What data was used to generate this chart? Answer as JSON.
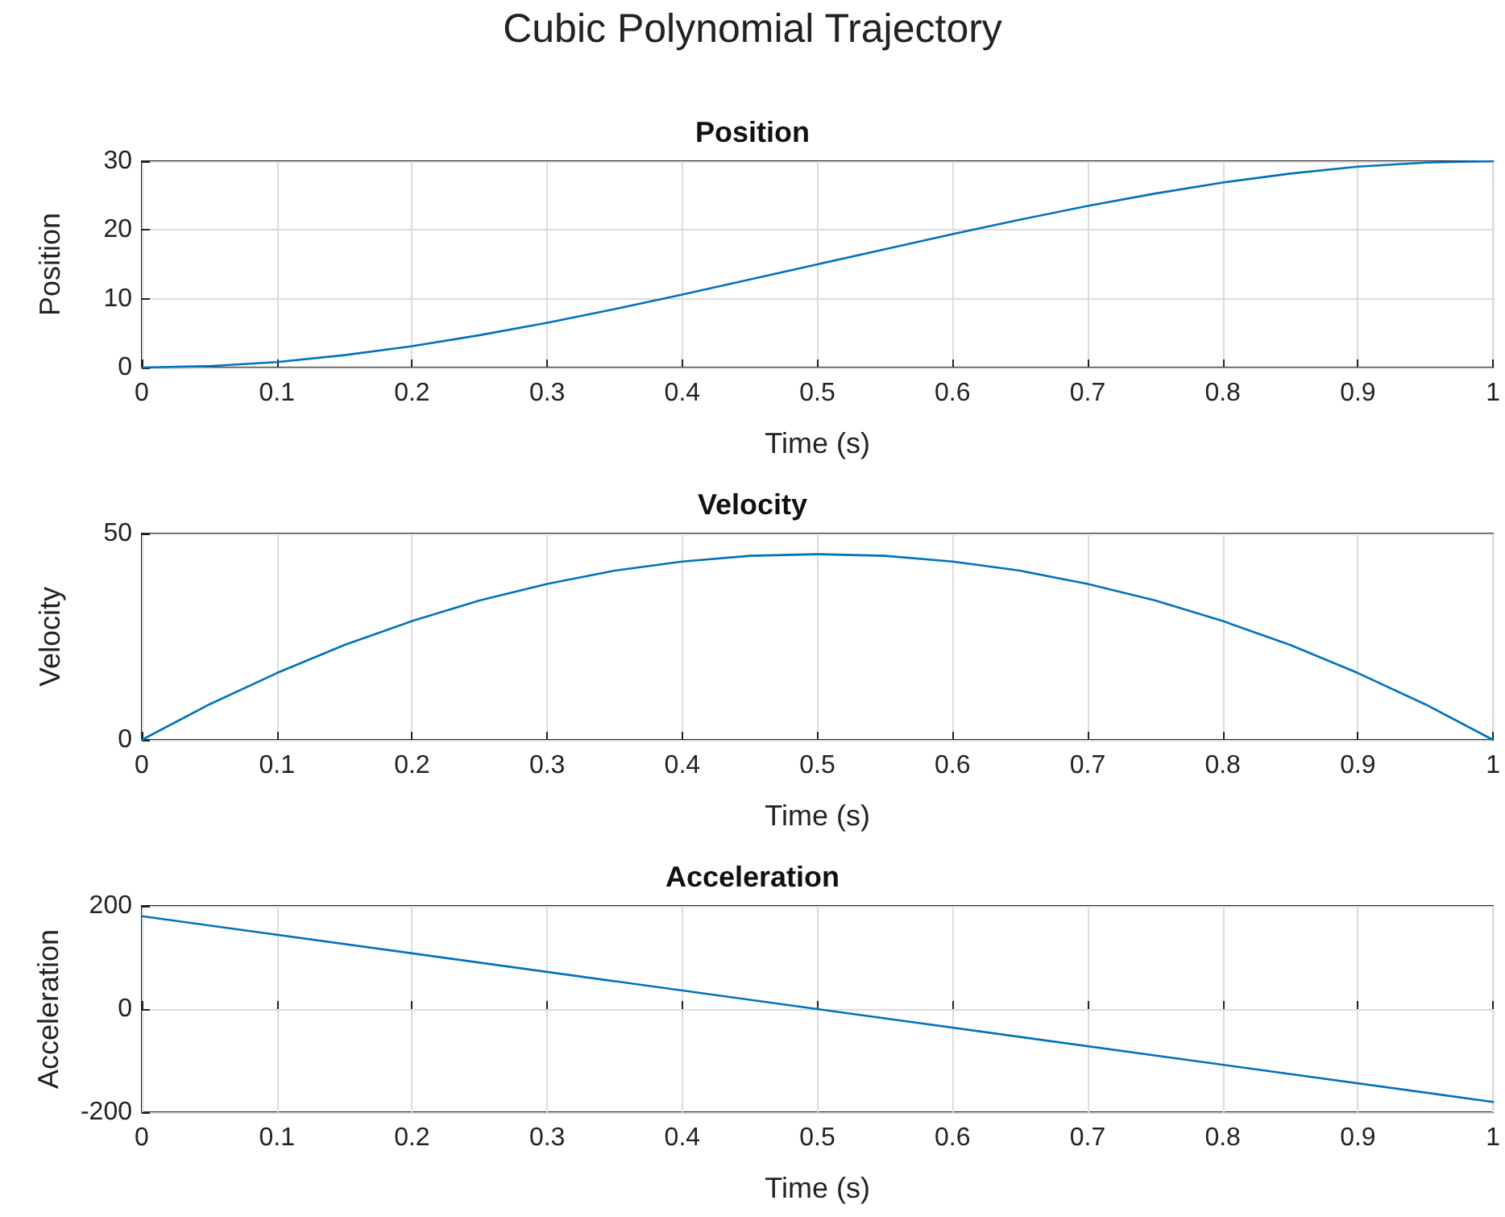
{
  "chart_data": [
    {
      "type": "line",
      "title": "Position",
      "annotations": [
        "Cubic Polynomial Trajectory"
      ],
      "xlabel": "Time (s)",
      "ylabel": "Position",
      "x": [
        0,
        0.05,
        0.1,
        0.15,
        0.2,
        0.25,
        0.3,
        0.35,
        0.4,
        0.45,
        0.5,
        0.55,
        0.6,
        0.65,
        0.7,
        0.75,
        0.8,
        0.85,
        0.9,
        0.95,
        1
      ],
      "series": [
        {
          "color": "#0072bd",
          "values": [
            0,
            0.2,
            0.8,
            1.8,
            3.1,
            4.7,
            6.5,
            8.5,
            10.6,
            12.8,
            15,
            17.2,
            19.4,
            21.5,
            23.5,
            25.3,
            26.9,
            28.2,
            29.2,
            29.8,
            30
          ]
        }
      ],
      "xlim": [
        0,
        1
      ],
      "xticks": [
        0,
        0.1,
        0.2,
        0.3,
        0.4,
        0.5,
        0.6,
        0.7,
        0.8,
        0.9,
        1
      ],
      "ylim": [
        0,
        30
      ],
      "yticks": [
        0,
        10,
        20,
        30
      ],
      "grid": true
    },
    {
      "type": "line",
      "title": "Velocity",
      "xlabel": "Time (s)",
      "ylabel": "Velocity",
      "x": [
        0,
        0.05,
        0.1,
        0.15,
        0.2,
        0.25,
        0.3,
        0.35,
        0.4,
        0.45,
        0.5,
        0.55,
        0.6,
        0.65,
        0.7,
        0.75,
        0.8,
        0.85,
        0.9,
        0.95,
        1
      ],
      "series": [
        {
          "color": "#0072bd",
          "values": [
            0,
            8.6,
            16.2,
            23,
            28.8,
            33.8,
            37.8,
            41,
            43.2,
            44.6,
            45,
            44.6,
            43.2,
            41,
            37.8,
            33.8,
            28.8,
            23,
            16.2,
            8.6,
            0
          ]
        }
      ],
      "xlim": [
        0,
        1
      ],
      "xticks": [
        0,
        0.1,
        0.2,
        0.3,
        0.4,
        0.5,
        0.6,
        0.7,
        0.8,
        0.9,
        1
      ],
      "ylim": [
        0,
        50
      ],
      "yticks": [
        0,
        50
      ],
      "grid": true
    },
    {
      "type": "line",
      "title": "Acceleration",
      "xlabel": "Time (s)",
      "ylabel": "Acceleration",
      "x": [
        0,
        1
      ],
      "series": [
        {
          "color": "#0072bd",
          "values": [
            180,
            -180
          ]
        }
      ],
      "xlim": [
        0,
        1
      ],
      "xticks": [
        0,
        0.1,
        0.2,
        0.3,
        0.4,
        0.5,
        0.6,
        0.7,
        0.8,
        0.9,
        1
      ],
      "ylim": [
        -200,
        200
      ],
      "yticks": [
        -200,
        0,
        200
      ],
      "grid": true
    }
  ]
}
